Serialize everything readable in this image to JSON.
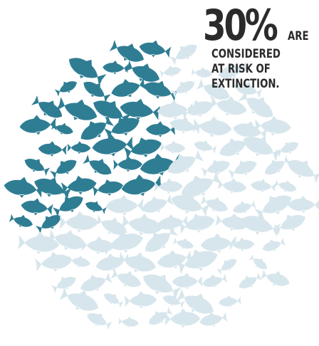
{
  "headline": {
    "percent": "30%",
    "word": "ARE",
    "lines": [
      "CONSIDERED",
      "AT RISK OF",
      "EXTINCTION."
    ]
  },
  "colors": {
    "at_risk": "#2f7d93",
    "not_at_risk": "#d7e6ec",
    "text": "#2b2b2b"
  },
  "icons": {
    "fish": "fish-icon"
  },
  "chart_data": {
    "type": "pie",
    "values": [
      30,
      70
    ]
  }
}
